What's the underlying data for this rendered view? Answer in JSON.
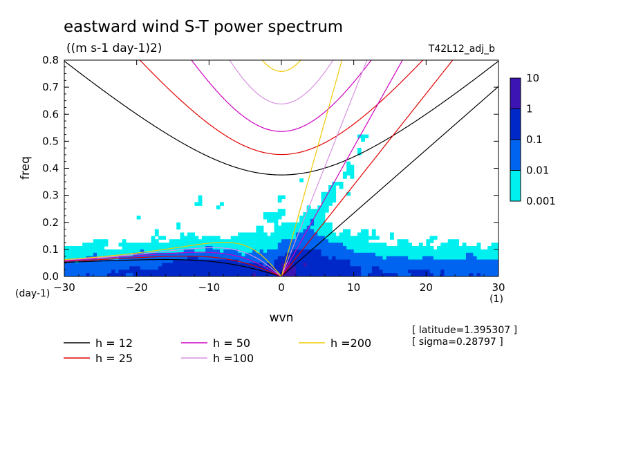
{
  "chart_data": {
    "type": "heatmap",
    "title": "eastward wind S-T power spectrum",
    "subtitle": "((m s-1 day-1)2)",
    "run_label": "T42L12_adj_b",
    "xlabel": "wvn",
    "ylabel": "freq",
    "x_unit": "(1)",
    "y_unit": "(day-1)",
    "xlim": [
      -30,
      30
    ],
    "ylim": [
      0,
      0.8
    ],
    "x_ticks": [
      "-30",
      "-20",
      "-10",
      "0",
      "10",
      "20",
      "30"
    ],
    "y_ticks": [
      "0.0",
      "0.1",
      "0.2",
      "0.3",
      "0.4",
      "0.5",
      "0.6",
      "0.7",
      "0.8"
    ],
    "grid": false,
    "colorbar": {
      "scale": "log",
      "labels": [
        "10",
        "1",
        "0.1",
        "0.01",
        "0.001"
      ],
      "levels": [
        {
          "range": [
            0.001,
            0.01
          ],
          "color": "#00f0f0"
        },
        {
          "range": [
            0.01,
            0.1
          ],
          "color": "#0064f0"
        },
        {
          "range": [
            0.1,
            1
          ],
          "color": "#0028c8"
        },
        {
          "range": [
            1,
            10
          ],
          "color": "#3c14b4"
        }
      ]
    },
    "dispersion_curves": [
      {
        "name": "h = 12",
        "h": 12,
        "color": "#000000"
      },
      {
        "name": "h = 25",
        "h": 25,
        "color": "#e00000"
      },
      {
        "name": "h = 50",
        "h": 50,
        "color": "#d000c0"
      },
      {
        "name": "h =100",
        "h": 100,
        "color": "#d890e0"
      },
      {
        "name": "h =200",
        "h": 200,
        "color": "#f0c800"
      }
    ],
    "annotations": [
      "[ latitude=1.395307 ]",
      "[ sigma=0.28797 ]"
    ]
  }
}
